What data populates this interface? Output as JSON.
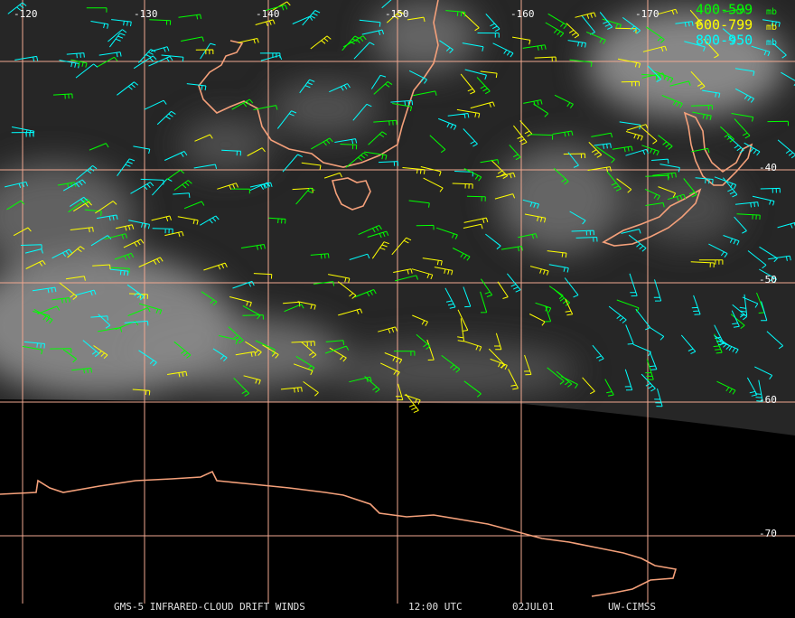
{
  "map": {
    "longitude_labels": [
      "-120",
      "-130",
      "-140",
      "-150",
      "-160",
      "-170"
    ],
    "latitude_labels": [
      "-40",
      "-50",
      "-60",
      "-70"
    ],
    "legend": [
      {
        "label": "400-599",
        "unit": "mb",
        "color": "#00ff00"
      },
      {
        "label": "600-799",
        "unit": "mb",
        "color": "#ffff00"
      },
      {
        "label": "800-950",
        "unit": "mb",
        "color": "#00ffff"
      }
    ],
    "footer": [
      "GMS-5 INFRARED-CLOUD DRIFT WINDS",
      "12:00 UTC",
      "02JUL01",
      "UW-CIMSS"
    ]
  }
}
